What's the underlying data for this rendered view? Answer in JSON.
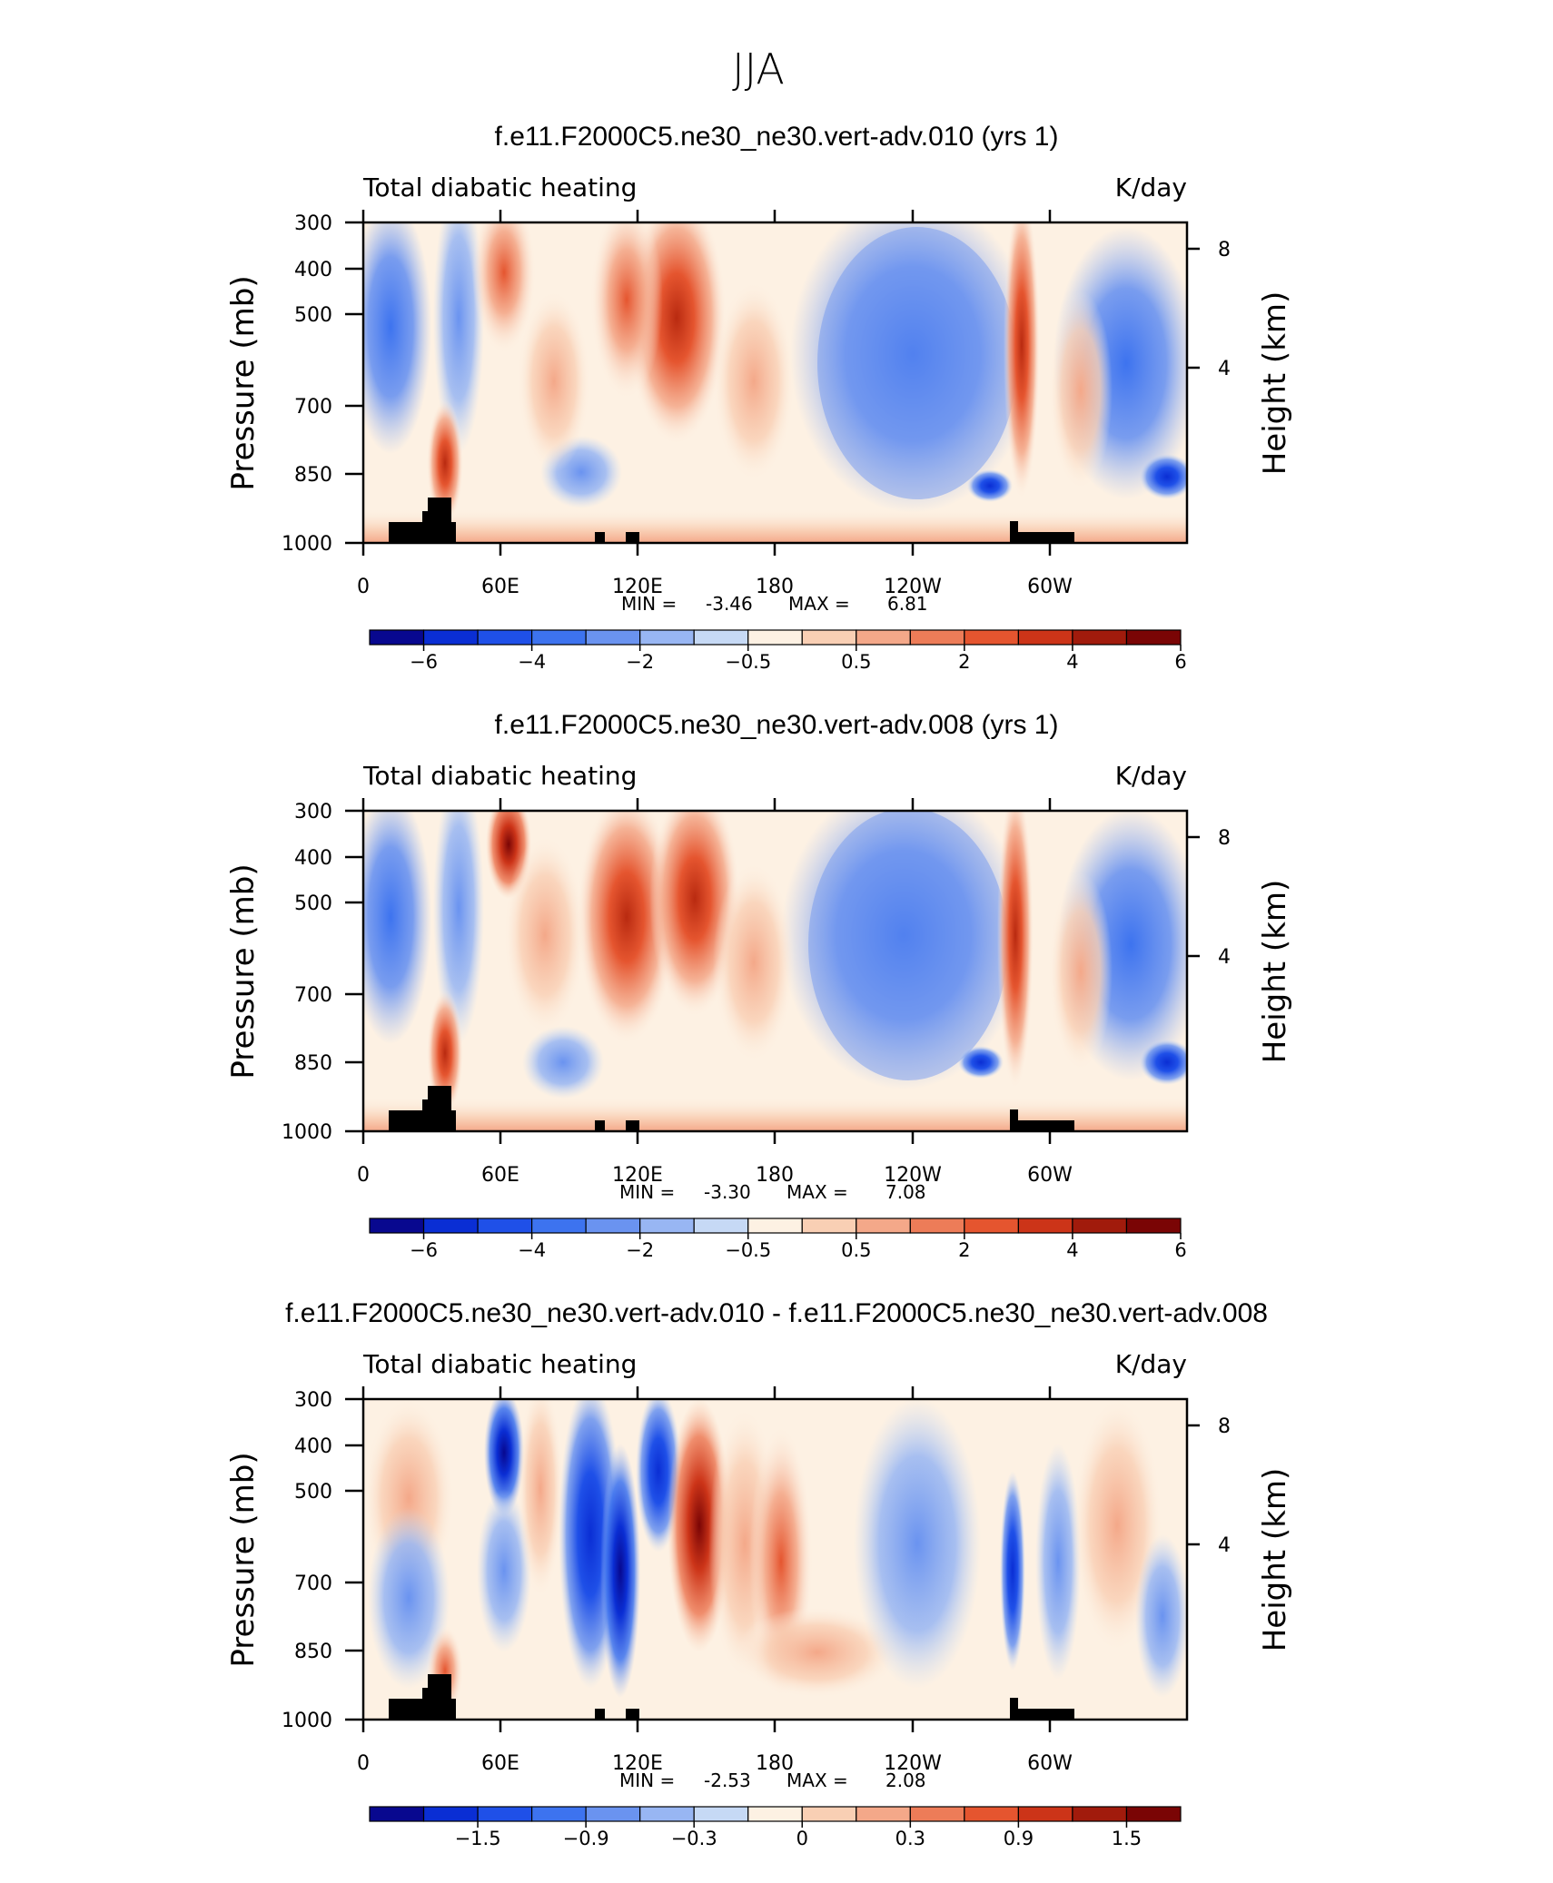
{
  "figure": {
    "title": "JJA"
  },
  "chart_data": [
    {
      "type": "heatmap",
      "title": "f.e11.F2000C5.ne30_ne30.vert-adv.010 (yrs 1)",
      "left_label": "Total diabatic heating",
      "units": "K/day",
      "ylabel": "Pressure (mb)",
      "ylabel_right": "Height (km)",
      "x_ticks": [
        "0",
        "60E",
        "120E",
        "180",
        "120W",
        "60W"
      ],
      "y_ticks": [
        "300",
        "400",
        "500",
        "700",
        "850",
        "1000"
      ],
      "y_right_ticks": [
        "8",
        "4"
      ],
      "stats": {
        "min_label": "MIN =",
        "min": "-3.46",
        "max_label": "MAX =",
        "max": "6.81"
      },
      "colorbar_labels": [
        "-6",
        "-4",
        "-2",
        "-0.5",
        "0.5",
        "2",
        "4",
        "6"
      ],
      "data_range": [
        -3.46,
        6.81
      ]
    },
    {
      "type": "heatmap",
      "title": "f.e11.F2000C5.ne30_ne30.vert-adv.008 (yrs 1)",
      "left_label": "Total diabatic heating",
      "units": "K/day",
      "ylabel": "Pressure (mb)",
      "ylabel_right": "Height (km)",
      "x_ticks": [
        "0",
        "60E",
        "120E",
        "180",
        "120W",
        "60W"
      ],
      "y_ticks": [
        "300",
        "400",
        "500",
        "700",
        "850",
        "1000"
      ],
      "y_right_ticks": [
        "8",
        "4"
      ],
      "stats": {
        "min_label": "MIN =",
        "min": "-3.30",
        "max_label": "MAX =",
        "max": "7.08"
      },
      "colorbar_labels": [
        "-6",
        "-4",
        "-2",
        "-0.5",
        "0.5",
        "2",
        "4",
        "6"
      ],
      "data_range": [
        -3.3,
        7.08
      ]
    },
    {
      "type": "heatmap",
      "title": "f.e11.F2000C5.ne30_ne30.vert-adv.010 - f.e11.F2000C5.ne30_ne30.vert-adv.008",
      "left_label": "Total diabatic heating",
      "units": "K/day",
      "ylabel": "Pressure (mb)",
      "ylabel_right": "Height (km)",
      "x_ticks": [
        "0",
        "60E",
        "120E",
        "180",
        "120W",
        "60W"
      ],
      "y_ticks": [
        "300",
        "400",
        "500",
        "700",
        "850",
        "1000"
      ],
      "y_right_ticks": [
        "8",
        "4"
      ],
      "stats": {
        "min_label": "MIN =",
        "min": "-2.53",
        "max_label": "MAX =",
        "max": "2.08"
      },
      "colorbar_labels": [
        "-1.5",
        "-0.9",
        "-0.3",
        "0",
        "0.3",
        "0.9",
        "1.5"
      ],
      "data_range": [
        -2.53,
        2.08
      ]
    }
  ],
  "colors": {
    "colorbar": [
      "#08088f",
      "#0a2ed4",
      "#1f50e8",
      "#3d73ef",
      "#6a93f0",
      "#98b6f3",
      "#c6d9f5",
      "#fdf1e3",
      "#f9cfb4",
      "#f4a889",
      "#ed7c58",
      "#e5552f",
      "#cc3418",
      "#a11b0c",
      "#7a0505"
    ],
    "terrain": "#000000"
  }
}
